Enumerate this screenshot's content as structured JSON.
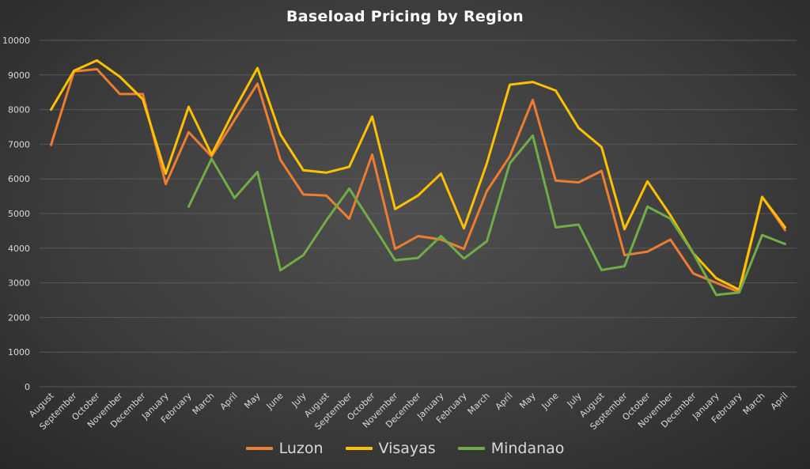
{
  "chart_data": {
    "type": "line",
    "title": "Baseload Pricing by Region",
    "xlabel": "",
    "ylabel": "",
    "ylim": [
      0,
      10000
    ],
    "yticks": [
      0,
      1000,
      2000,
      3000,
      4000,
      5000,
      6000,
      7000,
      8000,
      9000,
      10000
    ],
    "grid": true,
    "legend_position": "bottom",
    "categories": [
      "August",
      "September",
      "October",
      "November",
      "December",
      "January",
      "February",
      "March",
      "April",
      "May",
      "June",
      "July",
      "August",
      "September",
      "October",
      "November",
      "December",
      "January",
      "February",
      "March",
      "April",
      "May",
      "June",
      "July",
      "August",
      "September",
      "October",
      "November",
      "December",
      "January",
      "February",
      "March",
      "April"
    ],
    "series": [
      {
        "name": "Luzon",
        "color": "#ed7d31",
        "values": [
          6980,
          9100,
          9170,
          8450,
          8450,
          5850,
          7350,
          6650,
          7700,
          8750,
          6550,
          5550,
          5520,
          4850,
          6700,
          3980,
          4350,
          4250,
          3980,
          5650,
          6650,
          8280,
          5950,
          5900,
          6230,
          3800,
          3900,
          4250,
          3270,
          3000,
          2730,
          5480,
          4520
        ]
      },
      {
        "name": "Visayas",
        "color": "#ffc000",
        "values": [
          8000,
          9120,
          9420,
          8950,
          8300,
          6150,
          8080,
          6700,
          8000,
          9200,
          7280,
          6250,
          6180,
          6350,
          7800,
          5130,
          5520,
          6150,
          4570,
          6450,
          8720,
          8800,
          8550,
          7470,
          6920,
          4550,
          5930,
          4950,
          3850,
          3130,
          2800,
          5480,
          4600
        ]
      },
      {
        "name": "Mindanao",
        "color": "#70ad47",
        "values": [
          null,
          null,
          null,
          null,
          null,
          null,
          5200,
          6580,
          5450,
          6200,
          3360,
          3800,
          4800,
          5720,
          4700,
          3650,
          3720,
          4350,
          3700,
          4200,
          6450,
          7250,
          4600,
          4680,
          3370,
          3480,
          5200,
          4850,
          3850,
          2650,
          2720,
          4380,
          4120
        ]
      }
    ]
  },
  "style": {
    "tick_label_color": "#d9d9d9",
    "grid_color": "#595959"
  }
}
